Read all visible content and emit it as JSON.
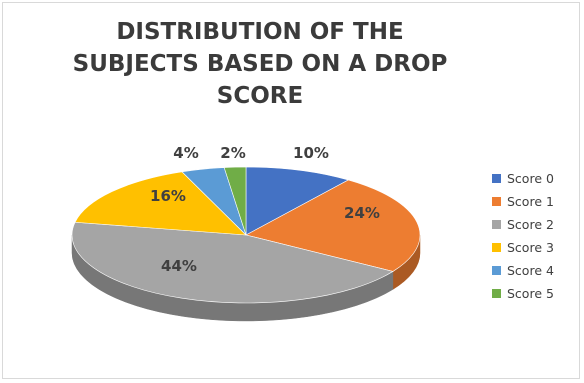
{
  "chart_data": {
    "type": "pie",
    "title_lines": [
      "DISTRIBUTION OF THE",
      "SUBJECTS BASED ON A DROP",
      "SCORE"
    ],
    "categories": [
      "Score 0",
      "Score 1",
      "Score 2",
      "Score 3",
      "Score 4",
      "Score 5"
    ],
    "values": [
      10,
      24,
      44,
      16,
      4,
      2
    ],
    "data_labels": [
      "10%",
      "24%",
      "44%",
      "16%",
      "4%",
      "2%"
    ],
    "colors": [
      "#4472c4",
      "#ed7d31",
      "#a5a5a5",
      "#ffc000",
      "#5b9bd5",
      "#70ad47"
    ],
    "legend_position": "right",
    "style": "3d"
  }
}
